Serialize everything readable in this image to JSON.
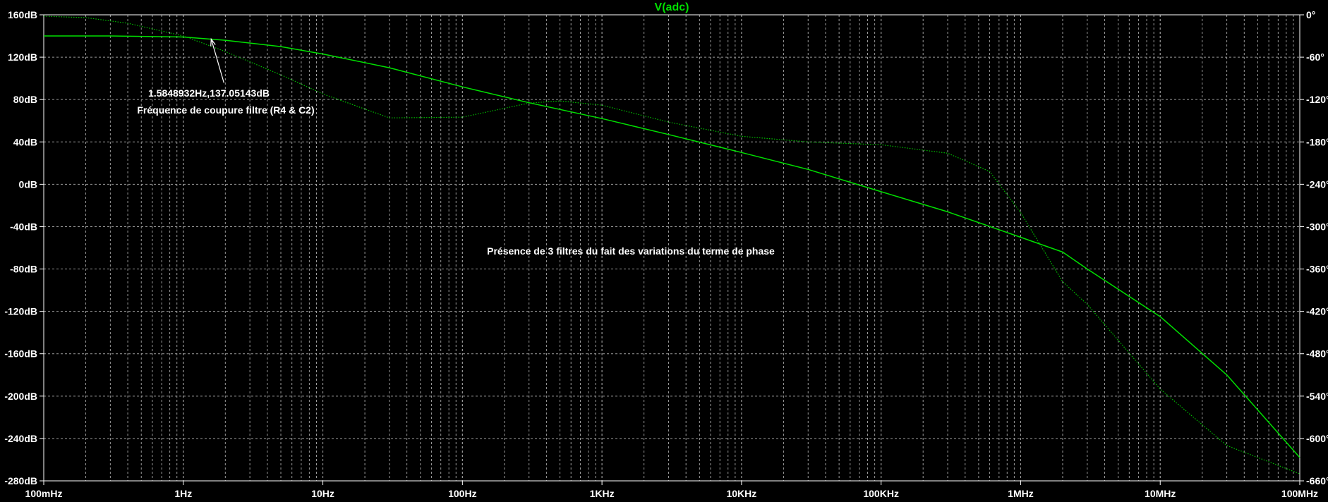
{
  "chart_data": {
    "type": "line",
    "title": "V(adc)",
    "x_scale": "log",
    "xlim_hz": [
      0.1,
      100000000
    ],
    "y_left_lim_db": [
      -280,
      160
    ],
    "y_right_lim_deg": [
      -660,
      0
    ],
    "grid": true,
    "x_ticks": [
      {
        "value": 0.1,
        "label": "100mHz"
      },
      {
        "value": 1,
        "label": "1Hz"
      },
      {
        "value": 10,
        "label": "10Hz"
      },
      {
        "value": 100,
        "label": "100Hz"
      },
      {
        "value": 1000,
        "label": "1KHz"
      },
      {
        "value": 10000,
        "label": "10KHz"
      },
      {
        "value": 100000,
        "label": "100KHz"
      },
      {
        "value": 1000000,
        "label": "1MHz"
      },
      {
        "value": 10000000,
        "label": "10MHz"
      },
      {
        "value": 100000000,
        "label": "100MHz"
      }
    ],
    "y_left_ticks": [
      {
        "value": 160,
        "label": "160dB"
      },
      {
        "value": 120,
        "label": "120dB"
      },
      {
        "value": 80,
        "label": "80dB"
      },
      {
        "value": 40,
        "label": "40dB"
      },
      {
        "value": 0,
        "label": "0dB"
      },
      {
        "value": -40,
        "label": "-40dB"
      },
      {
        "value": -80,
        "label": "-80dB"
      },
      {
        "value": -120,
        "label": "-120dB"
      },
      {
        "value": -160,
        "label": "-160dB"
      },
      {
        "value": -200,
        "label": "-200dB"
      },
      {
        "value": -240,
        "label": "-240dB"
      },
      {
        "value": -280,
        "label": "-280dB"
      }
    ],
    "y_right_ticks": [
      {
        "value": 0,
        "label": "0°"
      },
      {
        "value": -60,
        "label": "-60°"
      },
      {
        "value": -120,
        "label": "-120°"
      },
      {
        "value": -180,
        "label": "-180°"
      },
      {
        "value": -240,
        "label": "-240°"
      },
      {
        "value": -300,
        "label": "-300°"
      },
      {
        "value": -360,
        "label": "-360°"
      },
      {
        "value": -420,
        "label": "-420°"
      },
      {
        "value": -480,
        "label": "-480°"
      },
      {
        "value": -540,
        "label": "-540°"
      },
      {
        "value": -600,
        "label": "-600°"
      },
      {
        "value": -660,
        "label": "-660°"
      }
    ],
    "series": [
      {
        "axis": "left",
        "style": "solid",
        "color": "#00e000",
        "x": [
          0.1,
          0.3,
          1,
          2,
          5,
          10,
          30,
          100,
          300,
          1000,
          3000,
          10000,
          30000,
          100000,
          300000,
          1000000,
          2000000,
          3000000,
          10000000,
          30000000,
          100000000
        ],
        "y": [
          140,
          140,
          139,
          136,
          130,
          123,
          110,
          92,
          77,
          62,
          47,
          30,
          14,
          -7,
          -26,
          -50,
          -64,
          -80,
          -125,
          -180,
          -258
        ]
      },
      {
        "axis": "right",
        "style": "dotted",
        "color": "#00c000",
        "x": [
          0.1,
          0.2,
          0.4,
          1,
          2,
          5,
          10,
          30,
          100,
          300,
          500,
          1000,
          3000,
          10000,
          30000,
          100000,
          300000,
          600000,
          1000000,
          2000000,
          3000000,
          10000000,
          30000000,
          100000000
        ],
        "y": [
          -2,
          -4,
          -12,
          -30,
          -52,
          -85,
          -112,
          -146,
          -145,
          -125,
          -122,
          -128,
          -152,
          -172,
          -180,
          -184,
          -196,
          -222,
          -280,
          -378,
          -410,
          -530,
          -610,
          -650
        ]
      }
    ],
    "annotations": [
      {
        "text": "1.5848932Hz,137.05143dB",
        "x": 1.5848932,
        "y": 137.05143,
        "kind": "arrow"
      },
      {
        "text": "Fréquence de coupure filtre (R4 & C2)"
      },
      {
        "text": "Présence de 3 filtres du fait des variations du terme de phase"
      }
    ]
  }
}
